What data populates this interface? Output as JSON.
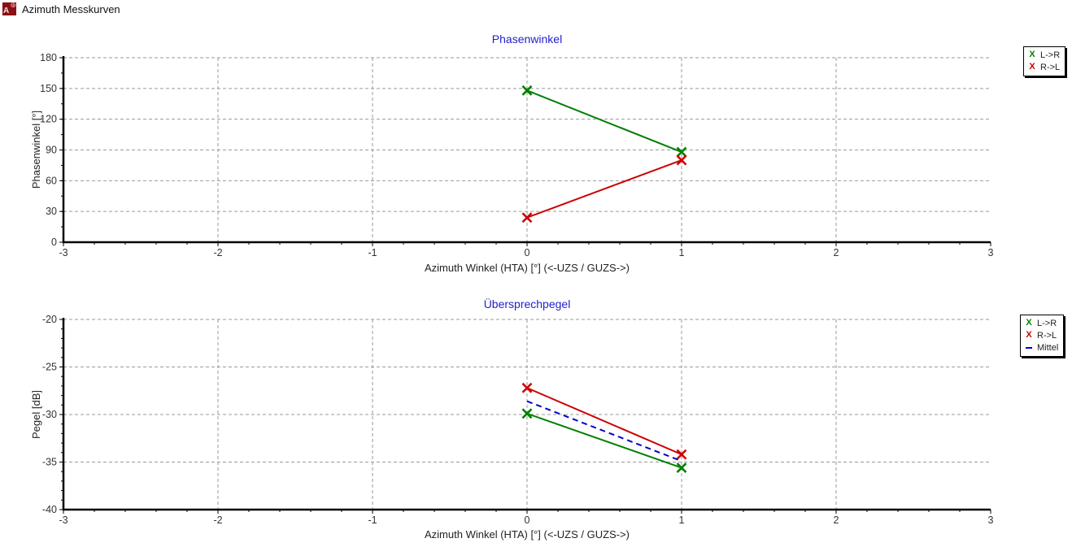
{
  "window": {
    "title": "Azimuth Messkurven",
    "icon": {
      "name": "azimuth-app-icon",
      "letter": "A",
      "symbol": "⊕",
      "background": "#8b0f14"
    }
  },
  "colors": {
    "title_blue": "#2222cc",
    "grid_gray": "#9a9a9a",
    "series_green": "#008000",
    "series_red": "#cc0000",
    "series_blue": "#0000cc"
  },
  "chart_data": [
    {
      "type": "line",
      "title": "Phasenwinkel",
      "xlabel": "Azimuth Winkel (HTA) [°] (<-UZS / GUZS->)",
      "ylabel": "Phasenwinkel [°]",
      "xlim": [
        -3,
        3
      ],
      "ylim": [
        0,
        180
      ],
      "xticks": [
        -3,
        -2,
        -1,
        0,
        1,
        2,
        3
      ],
      "yticks": [
        0,
        30,
        60,
        90,
        120,
        150,
        180
      ],
      "x_minor_step": 0.2,
      "y_minor_step": 15,
      "grid": true,
      "legend_position": "outside-right",
      "x": [
        0,
        1
      ],
      "series": [
        {
          "name": "L->R",
          "color": "#008000",
          "marker": "x",
          "dash": null,
          "values": [
            148,
            88
          ]
        },
        {
          "name": "R->L",
          "color": "#cc0000",
          "marker": "x",
          "dash": null,
          "values": [
            24,
            80
          ]
        }
      ]
    },
    {
      "type": "line",
      "title": "Übersprechpegel",
      "xlabel": "Azimuth Winkel (HTA) [°] (<-UZS / GUZS->)",
      "ylabel": "Pegel [dB]",
      "xlim": [
        -3,
        3
      ],
      "ylim": [
        -40,
        -20
      ],
      "xticks": [
        -3,
        -2,
        -1,
        0,
        1,
        2,
        3
      ],
      "yticks": [
        -40,
        -35,
        -30,
        -25,
        -20
      ],
      "x_minor_step": 0.2,
      "y_minor_step": 1,
      "grid": true,
      "legend_position": "outside-right",
      "x": [
        0,
        1
      ],
      "series": [
        {
          "name": "L->R",
          "color": "#008000",
          "marker": "x",
          "dash": null,
          "values": [
            -29.9,
            -35.6
          ]
        },
        {
          "name": "R->L",
          "color": "#cc0000",
          "marker": "x",
          "dash": null,
          "values": [
            -27.2,
            -34.2
          ]
        },
        {
          "name": "Mittel",
          "color": "#0000cc",
          "marker": null,
          "dash": "7 5",
          "values": [
            -28.6,
            -34.9
          ]
        }
      ]
    }
  ]
}
